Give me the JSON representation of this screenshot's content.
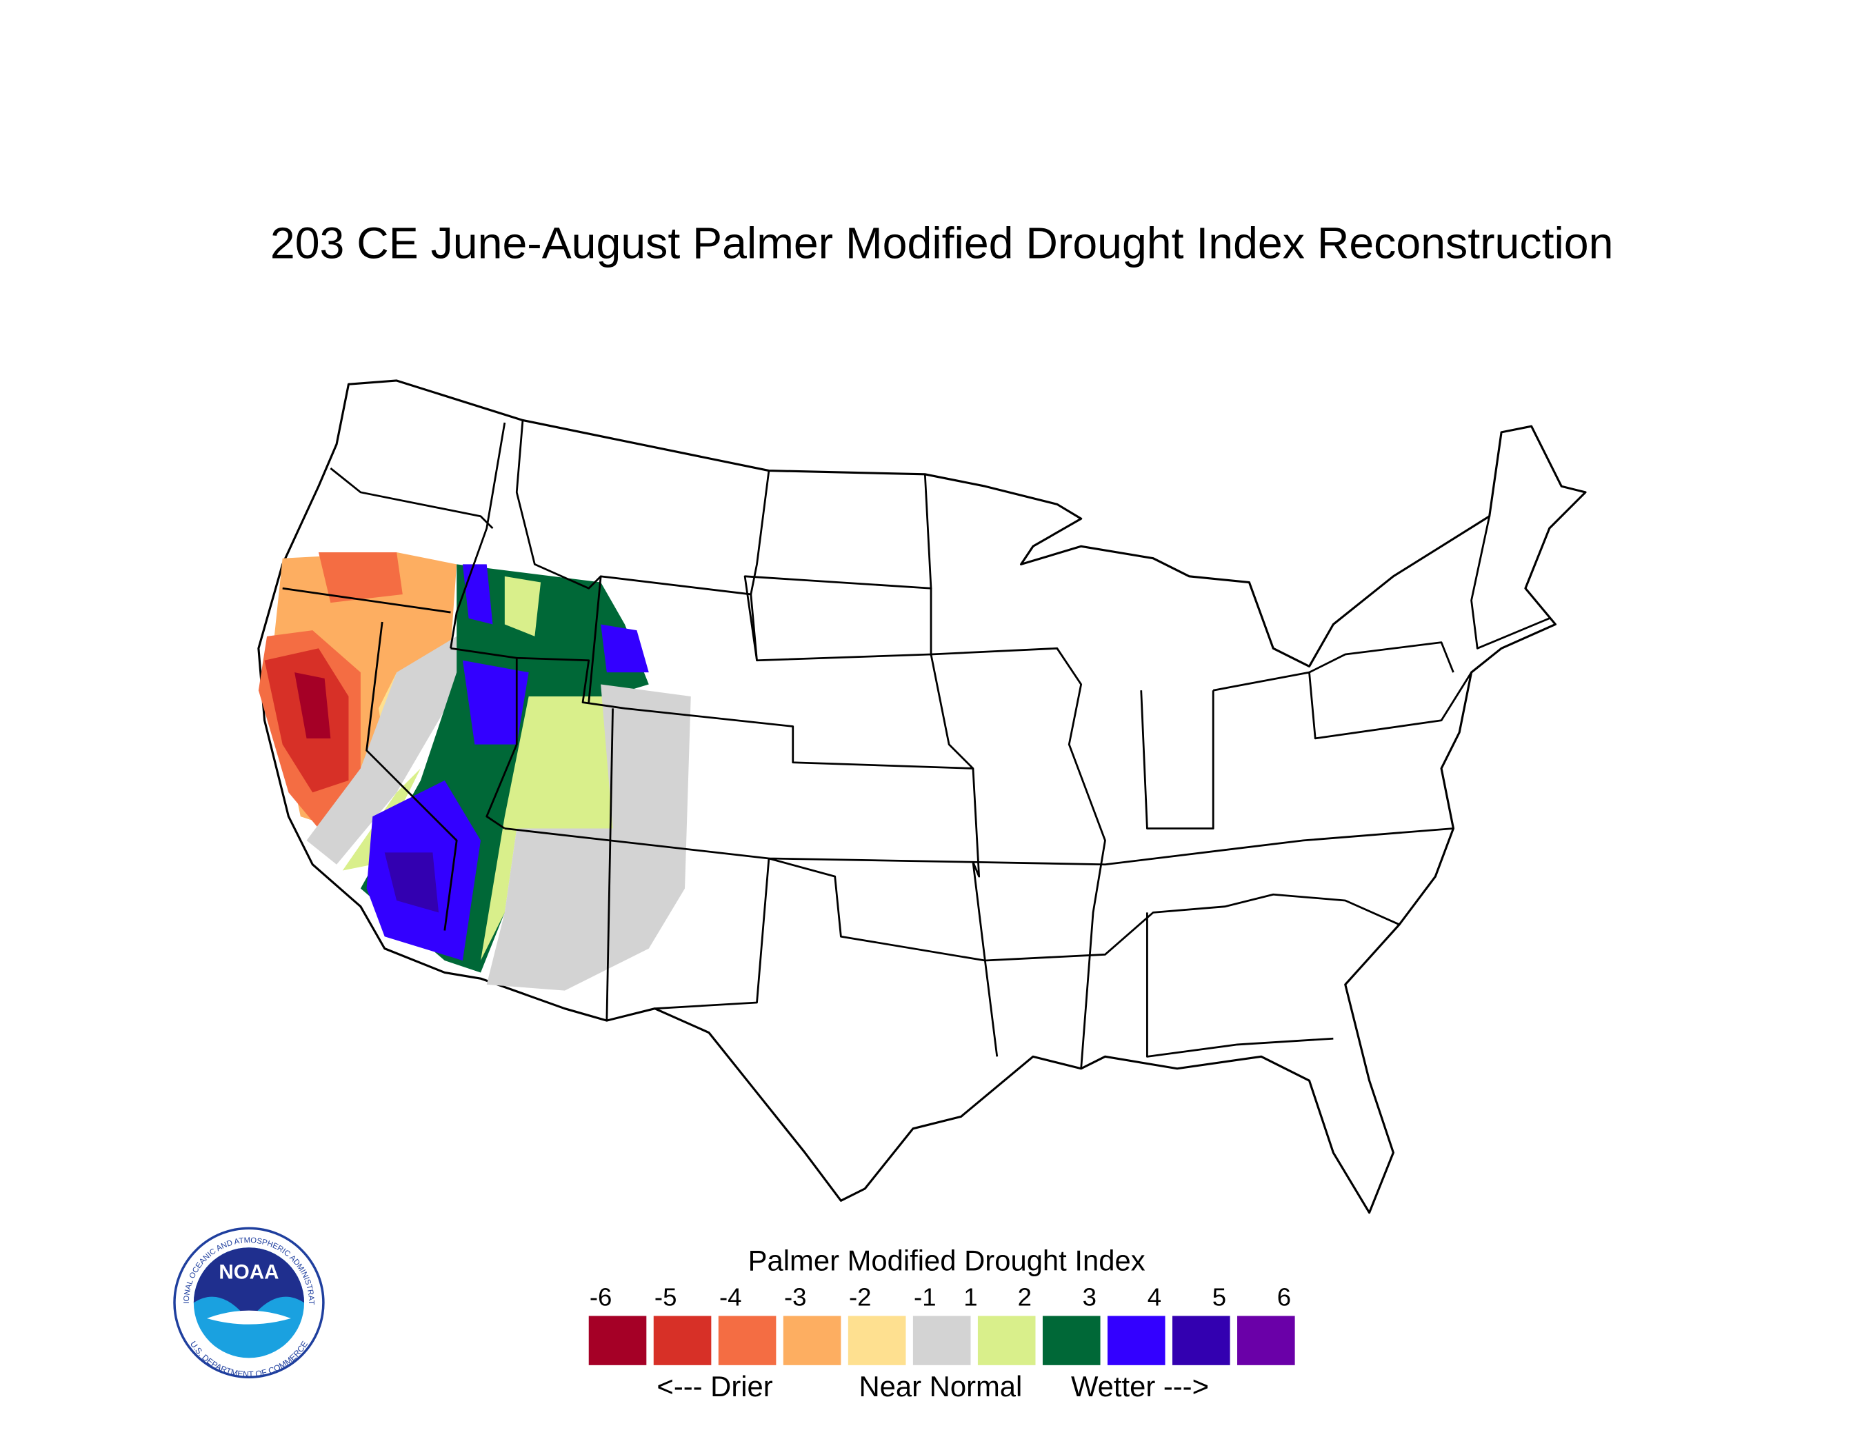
{
  "title": "203 CE  June-August  Palmer Modified Drought Index Reconstruction",
  "legend": {
    "title": "Palmer Modified Drought Index",
    "ticks": [
      -6,
      -5,
      -4,
      -3,
      -2,
      -1,
      1,
      2,
      3,
      4,
      5,
      6
    ],
    "colors": [
      "#a50026",
      "#d73027",
      "#f46d43",
      "#fdae61",
      "#fee090",
      "#d3d3d3",
      "#d9ef8b",
      "#006837",
      "#3300ff",
      "#3300b0",
      "#6a00a8"
    ],
    "notes": [
      "<--- Drier",
      "Near Normal",
      "Wetter --->"
    ]
  },
  "logo": {
    "name": "NOAA",
    "top_text": "NATIONAL OCEANIC AND ATMOSPHERIC ADMINISTRATION",
    "bottom_text": "U.S. DEPARTMENT OF COMMERCE"
  }
}
